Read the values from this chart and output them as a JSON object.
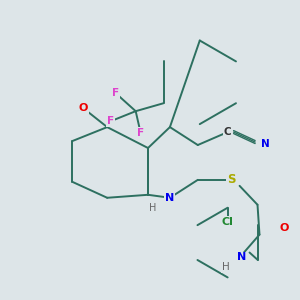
{
  "background_color": "#dde5e8",
  "bond_color": "#2d7060",
  "atom_colors": {
    "F": "#dd44cc",
    "O": "#ee0000",
    "N": "#0000ee",
    "S": "#aaaa00",
    "Cl": "#228833",
    "H": "#666666",
    "C": "#333333"
  },
  "figsize": [
    3.0,
    3.0
  ],
  "dpi": 100
}
